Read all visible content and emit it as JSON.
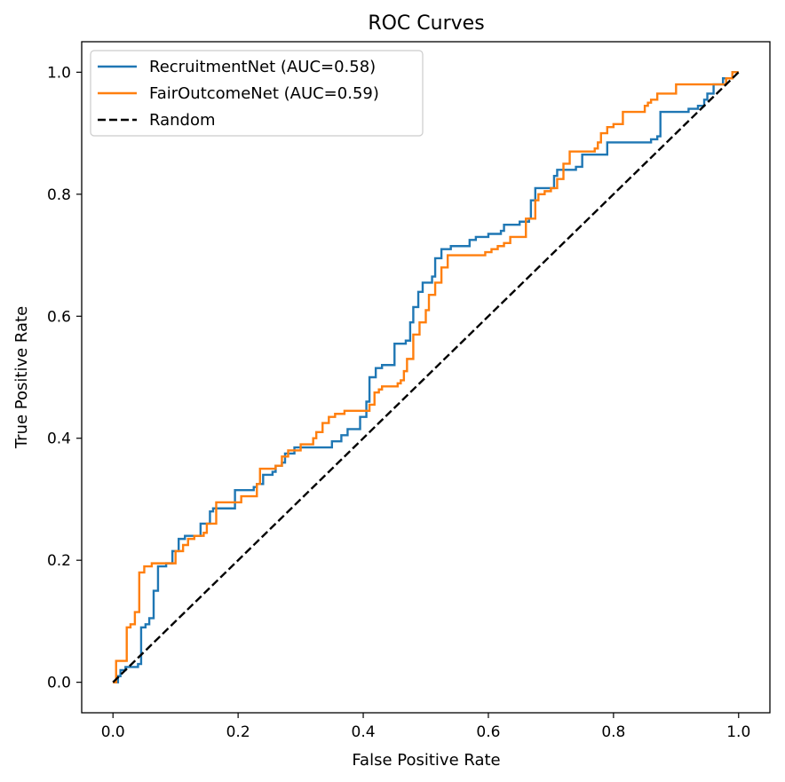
{
  "chart_data": {
    "type": "line",
    "title": "ROC Curves",
    "xlabel": "False Positive Rate",
    "ylabel": "True Positive Rate",
    "xlim": [
      -0.05,
      1.05
    ],
    "ylim": [
      -0.05,
      1.05
    ],
    "x_ticks": [
      "0.0",
      "0.2",
      "0.4",
      "0.6",
      "0.8",
      "1.0"
    ],
    "y_ticks": [
      "0.0",
      "0.2",
      "0.4",
      "0.6",
      "0.8",
      "1.0"
    ],
    "grid": false,
    "legend_position": "top-left",
    "series": [
      {
        "name": "RecruitmentNet (AUC=0.58)",
        "color": "#1f77b4",
        "style": "solid",
        "points": [
          [
            0.0,
            0.0
          ],
          [
            0.008,
            0.0
          ],
          [
            0.008,
            0.01
          ],
          [
            0.012,
            0.01
          ],
          [
            0.012,
            0.02
          ],
          [
            0.02,
            0.02
          ],
          [
            0.02,
            0.025
          ],
          [
            0.04,
            0.025
          ],
          [
            0.04,
            0.03
          ],
          [
            0.045,
            0.03
          ],
          [
            0.045,
            0.09
          ],
          [
            0.052,
            0.09
          ],
          [
            0.052,
            0.095
          ],
          [
            0.058,
            0.095
          ],
          [
            0.058,
            0.105
          ],
          [
            0.065,
            0.105
          ],
          [
            0.065,
            0.15
          ],
          [
            0.072,
            0.15
          ],
          [
            0.072,
            0.19
          ],
          [
            0.085,
            0.19
          ],
          [
            0.085,
            0.195
          ],
          [
            0.095,
            0.195
          ],
          [
            0.095,
            0.215
          ],
          [
            0.105,
            0.215
          ],
          [
            0.105,
            0.235
          ],
          [
            0.115,
            0.235
          ],
          [
            0.115,
            0.24
          ],
          [
            0.14,
            0.24
          ],
          [
            0.14,
            0.26
          ],
          [
            0.155,
            0.26
          ],
          [
            0.155,
            0.28
          ],
          [
            0.16,
            0.28
          ],
          [
            0.16,
            0.285
          ],
          [
            0.195,
            0.285
          ],
          [
            0.195,
            0.315
          ],
          [
            0.225,
            0.315
          ],
          [
            0.225,
            0.32
          ],
          [
            0.23,
            0.32
          ],
          [
            0.23,
            0.325
          ],
          [
            0.24,
            0.325
          ],
          [
            0.24,
            0.34
          ],
          [
            0.255,
            0.34
          ],
          [
            0.255,
            0.345
          ],
          [
            0.26,
            0.345
          ],
          [
            0.26,
            0.355
          ],
          [
            0.27,
            0.355
          ],
          [
            0.27,
            0.36
          ],
          [
            0.275,
            0.36
          ],
          [
            0.275,
            0.375
          ],
          [
            0.29,
            0.375
          ],
          [
            0.29,
            0.385
          ],
          [
            0.35,
            0.385
          ],
          [
            0.35,
            0.395
          ],
          [
            0.365,
            0.395
          ],
          [
            0.365,
            0.405
          ],
          [
            0.375,
            0.405
          ],
          [
            0.375,
            0.415
          ],
          [
            0.395,
            0.415
          ],
          [
            0.395,
            0.435
          ],
          [
            0.405,
            0.435
          ],
          [
            0.405,
            0.46
          ],
          [
            0.41,
            0.46
          ],
          [
            0.41,
            0.5
          ],
          [
            0.42,
            0.5
          ],
          [
            0.42,
            0.515
          ],
          [
            0.43,
            0.515
          ],
          [
            0.43,
            0.52
          ],
          [
            0.45,
            0.52
          ],
          [
            0.45,
            0.555
          ],
          [
            0.468,
            0.555
          ],
          [
            0.468,
            0.56
          ],
          [
            0.475,
            0.56
          ],
          [
            0.475,
            0.59
          ],
          [
            0.48,
            0.59
          ],
          [
            0.48,
            0.615
          ],
          [
            0.488,
            0.615
          ],
          [
            0.488,
            0.64
          ],
          [
            0.495,
            0.64
          ],
          [
            0.495,
            0.655
          ],
          [
            0.51,
            0.655
          ],
          [
            0.51,
            0.665
          ],
          [
            0.515,
            0.665
          ],
          [
            0.515,
            0.695
          ],
          [
            0.525,
            0.695
          ],
          [
            0.525,
            0.71
          ],
          [
            0.54,
            0.71
          ],
          [
            0.54,
            0.715
          ],
          [
            0.57,
            0.715
          ],
          [
            0.57,
            0.725
          ],
          [
            0.58,
            0.725
          ],
          [
            0.58,
            0.73
          ],
          [
            0.6,
            0.73
          ],
          [
            0.6,
            0.735
          ],
          [
            0.62,
            0.735
          ],
          [
            0.62,
            0.74
          ],
          [
            0.625,
            0.74
          ],
          [
            0.625,
            0.75
          ],
          [
            0.65,
            0.75
          ],
          [
            0.65,
            0.755
          ],
          [
            0.665,
            0.755
          ],
          [
            0.665,
            0.76
          ],
          [
            0.668,
            0.76
          ],
          [
            0.668,
            0.79
          ],
          [
            0.675,
            0.79
          ],
          [
            0.675,
            0.81
          ],
          [
            0.705,
            0.81
          ],
          [
            0.705,
            0.83
          ],
          [
            0.71,
            0.83
          ],
          [
            0.71,
            0.84
          ],
          [
            0.74,
            0.84
          ],
          [
            0.74,
            0.845
          ],
          [
            0.75,
            0.845
          ],
          [
            0.75,
            0.865
          ],
          [
            0.79,
            0.865
          ],
          [
            0.79,
            0.885
          ],
          [
            0.86,
            0.885
          ],
          [
            0.86,
            0.89
          ],
          [
            0.87,
            0.89
          ],
          [
            0.87,
            0.895
          ],
          [
            0.875,
            0.895
          ],
          [
            0.875,
            0.935
          ],
          [
            0.92,
            0.935
          ],
          [
            0.92,
            0.94
          ],
          [
            0.935,
            0.94
          ],
          [
            0.935,
            0.945
          ],
          [
            0.945,
            0.945
          ],
          [
            0.945,
            0.955
          ],
          [
            0.95,
            0.955
          ],
          [
            0.95,
            0.965
          ],
          [
            0.96,
            0.965
          ],
          [
            0.96,
            0.98
          ],
          [
            0.975,
            0.98
          ],
          [
            0.975,
            0.99
          ],
          [
            0.99,
            0.99
          ],
          [
            0.99,
            1.0
          ],
          [
            1.0,
            1.0
          ]
        ]
      },
      {
        "name": "FairOutcomeNet (AUC=0.59)",
        "color": "#ff7f0e",
        "style": "solid",
        "points": [
          [
            0.0,
            0.0
          ],
          [
            0.005,
            0.0
          ],
          [
            0.005,
            0.035
          ],
          [
            0.022,
            0.035
          ],
          [
            0.022,
            0.09
          ],
          [
            0.028,
            0.09
          ],
          [
            0.028,
            0.095
          ],
          [
            0.035,
            0.095
          ],
          [
            0.035,
            0.115
          ],
          [
            0.042,
            0.115
          ],
          [
            0.042,
            0.18
          ],
          [
            0.05,
            0.18
          ],
          [
            0.05,
            0.19
          ],
          [
            0.062,
            0.19
          ],
          [
            0.062,
            0.195
          ],
          [
            0.1,
            0.195
          ],
          [
            0.1,
            0.215
          ],
          [
            0.112,
            0.215
          ],
          [
            0.112,
            0.225
          ],
          [
            0.12,
            0.225
          ],
          [
            0.12,
            0.235
          ],
          [
            0.13,
            0.235
          ],
          [
            0.13,
            0.24
          ],
          [
            0.145,
            0.24
          ],
          [
            0.145,
            0.245
          ],
          [
            0.15,
            0.245
          ],
          [
            0.15,
            0.26
          ],
          [
            0.165,
            0.26
          ],
          [
            0.165,
            0.295
          ],
          [
            0.205,
            0.295
          ],
          [
            0.205,
            0.305
          ],
          [
            0.23,
            0.305
          ],
          [
            0.23,
            0.325
          ],
          [
            0.235,
            0.325
          ],
          [
            0.235,
            0.35
          ],
          [
            0.26,
            0.35
          ],
          [
            0.26,
            0.355
          ],
          [
            0.27,
            0.355
          ],
          [
            0.27,
            0.37
          ],
          [
            0.28,
            0.37
          ],
          [
            0.28,
            0.38
          ],
          [
            0.3,
            0.38
          ],
          [
            0.3,
            0.39
          ],
          [
            0.32,
            0.39
          ],
          [
            0.32,
            0.4
          ],
          [
            0.325,
            0.4
          ],
          [
            0.325,
            0.41
          ],
          [
            0.335,
            0.41
          ],
          [
            0.335,
            0.425
          ],
          [
            0.345,
            0.425
          ],
          [
            0.345,
            0.435
          ],
          [
            0.355,
            0.435
          ],
          [
            0.355,
            0.44
          ],
          [
            0.37,
            0.44
          ],
          [
            0.37,
            0.445
          ],
          [
            0.41,
            0.445
          ],
          [
            0.41,
            0.455
          ],
          [
            0.418,
            0.455
          ],
          [
            0.418,
            0.475
          ],
          [
            0.425,
            0.475
          ],
          [
            0.425,
            0.48
          ],
          [
            0.43,
            0.48
          ],
          [
            0.43,
            0.485
          ],
          [
            0.455,
            0.485
          ],
          [
            0.455,
            0.49
          ],
          [
            0.46,
            0.49
          ],
          [
            0.46,
            0.495
          ],
          [
            0.465,
            0.495
          ],
          [
            0.465,
            0.51
          ],
          [
            0.47,
            0.51
          ],
          [
            0.47,
            0.53
          ],
          [
            0.48,
            0.53
          ],
          [
            0.48,
            0.57
          ],
          [
            0.49,
            0.57
          ],
          [
            0.49,
            0.59
          ],
          [
            0.5,
            0.59
          ],
          [
            0.5,
            0.61
          ],
          [
            0.505,
            0.61
          ],
          [
            0.505,
            0.635
          ],
          [
            0.515,
            0.635
          ],
          [
            0.515,
            0.655
          ],
          [
            0.525,
            0.655
          ],
          [
            0.525,
            0.68
          ],
          [
            0.535,
            0.68
          ],
          [
            0.535,
            0.7
          ],
          [
            0.595,
            0.7
          ],
          [
            0.595,
            0.705
          ],
          [
            0.605,
            0.705
          ],
          [
            0.605,
            0.71
          ],
          [
            0.615,
            0.71
          ],
          [
            0.615,
            0.715
          ],
          [
            0.625,
            0.715
          ],
          [
            0.625,
            0.72
          ],
          [
            0.635,
            0.72
          ],
          [
            0.635,
            0.73
          ],
          [
            0.66,
            0.73
          ],
          [
            0.66,
            0.76
          ],
          [
            0.675,
            0.76
          ],
          [
            0.675,
            0.79
          ],
          [
            0.68,
            0.79
          ],
          [
            0.68,
            0.8
          ],
          [
            0.69,
            0.8
          ],
          [
            0.69,
            0.805
          ],
          [
            0.7,
            0.805
          ],
          [
            0.7,
            0.81
          ],
          [
            0.71,
            0.81
          ],
          [
            0.71,
            0.825
          ],
          [
            0.72,
            0.825
          ],
          [
            0.72,
            0.85
          ],
          [
            0.73,
            0.85
          ],
          [
            0.73,
            0.87
          ],
          [
            0.77,
            0.87
          ],
          [
            0.77,
            0.875
          ],
          [
            0.775,
            0.875
          ],
          [
            0.775,
            0.885
          ],
          [
            0.78,
            0.885
          ],
          [
            0.78,
            0.9
          ],
          [
            0.79,
            0.9
          ],
          [
            0.79,
            0.91
          ],
          [
            0.8,
            0.91
          ],
          [
            0.8,
            0.915
          ],
          [
            0.815,
            0.915
          ],
          [
            0.815,
            0.935
          ],
          [
            0.85,
            0.935
          ],
          [
            0.85,
            0.945
          ],
          [
            0.855,
            0.945
          ],
          [
            0.855,
            0.95
          ],
          [
            0.86,
            0.95
          ],
          [
            0.86,
            0.955
          ],
          [
            0.87,
            0.955
          ],
          [
            0.87,
            0.965
          ],
          [
            0.9,
            0.965
          ],
          [
            0.9,
            0.98
          ],
          [
            0.98,
            0.98
          ],
          [
            0.98,
            0.99
          ],
          [
            0.99,
            0.99
          ],
          [
            0.99,
            1.0
          ],
          [
            1.0,
            1.0
          ]
        ]
      },
      {
        "name": "Random",
        "color": "#000000",
        "style": "dashed",
        "points": [
          [
            0.0,
            0.0
          ],
          [
            1.0,
            1.0
          ]
        ]
      }
    ]
  }
}
